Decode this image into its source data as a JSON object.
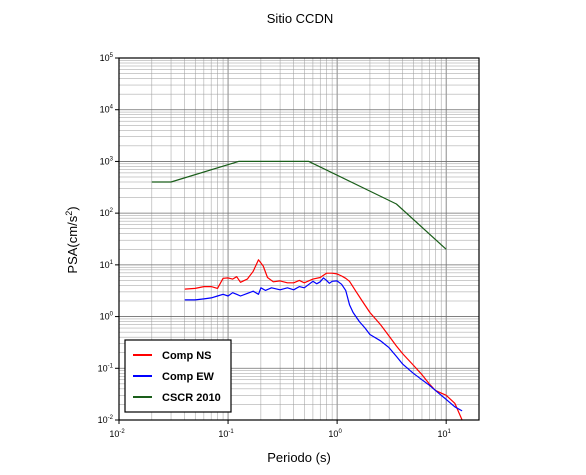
{
  "chart_data": {
    "type": "line",
    "title": "Sitio CCDN",
    "xlabel": "Periodo (s)",
    "ylabel": "PSA(cm/s2)",
    "xscale": "log",
    "yscale": "log",
    "xlim": [
      0.01,
      20
    ],
    "ylim": [
      0.01,
      100000
    ],
    "grid": true,
    "legend_position": "bottom-left",
    "xticks": [
      {
        "base": "10",
        "exp": "-2",
        "value": 0.01
      },
      {
        "base": "10",
        "exp": "-1",
        "value": 0.1
      },
      {
        "base": "10",
        "exp": "0",
        "value": 1
      },
      {
        "base": "10",
        "exp": "1",
        "value": 10
      }
    ],
    "yticks": [
      {
        "base": "10",
        "exp": "-2",
        "value": 0.01
      },
      {
        "base": "10",
        "exp": "-1",
        "value": 0.1
      },
      {
        "base": "10",
        "exp": "0",
        "value": 1
      },
      {
        "base": "10",
        "exp": "1",
        "value": 10
      },
      {
        "base": "10",
        "exp": "2",
        "value": 100
      },
      {
        "base": "10",
        "exp": "3",
        "value": 1000
      },
      {
        "base": "10",
        "exp": "4",
        "value": 10000
      },
      {
        "base": "10",
        "exp": "5",
        "value": 100000
      }
    ],
    "series": [
      {
        "name": "Comp NS",
        "color": "#ff0000",
        "points": [
          [
            0.04,
            3.4
          ],
          [
            0.05,
            3.5
          ],
          [
            0.06,
            3.8
          ],
          [
            0.07,
            3.8
          ],
          [
            0.08,
            3.5
          ],
          [
            0.09,
            5.5
          ],
          [
            0.1,
            5.6
          ],
          [
            0.11,
            5.3
          ],
          [
            0.12,
            5.9
          ],
          [
            0.13,
            4.6
          ],
          [
            0.15,
            5.3
          ],
          [
            0.17,
            7.5
          ],
          [
            0.19,
            12.5
          ],
          [
            0.21,
            9.5
          ],
          [
            0.23,
            5.7
          ],
          [
            0.26,
            4.7
          ],
          [
            0.3,
            4.9
          ],
          [
            0.35,
            4.5
          ],
          [
            0.4,
            4.5
          ],
          [
            0.45,
            5.0
          ],
          [
            0.5,
            4.5
          ],
          [
            0.6,
            5.3
          ],
          [
            0.7,
            5.7
          ],
          [
            0.8,
            6.9
          ],
          [
            0.9,
            6.9
          ],
          [
            1.0,
            6.7
          ],
          [
            1.1,
            6.1
          ],
          [
            1.2,
            5.5
          ],
          [
            1.3,
            4.8
          ],
          [
            1.5,
            3.0
          ],
          [
            1.7,
            2.0
          ],
          [
            2.0,
            1.2
          ],
          [
            2.5,
            0.7
          ],
          [
            3.0,
            0.42
          ],
          [
            3.5,
            0.27
          ],
          [
            4.0,
            0.19
          ],
          [
            5.0,
            0.115
          ],
          [
            6.0,
            0.075
          ],
          [
            7.0,
            0.05
          ],
          [
            8.0,
            0.037
          ],
          [
            10.0,
            0.03
          ],
          [
            12.0,
            0.021
          ],
          [
            14.0,
            0.01
          ]
        ]
      },
      {
        "name": "Comp EW",
        "color": "#0000ff",
        "points": [
          [
            0.04,
            2.1
          ],
          [
            0.05,
            2.1
          ],
          [
            0.06,
            2.2
          ],
          [
            0.07,
            2.3
          ],
          [
            0.08,
            2.5
          ],
          [
            0.09,
            2.7
          ],
          [
            0.1,
            2.5
          ],
          [
            0.11,
            2.9
          ],
          [
            0.12,
            2.7
          ],
          [
            0.13,
            2.5
          ],
          [
            0.15,
            2.8
          ],
          [
            0.17,
            3.1
          ],
          [
            0.19,
            2.7
          ],
          [
            0.2,
            3.6
          ],
          [
            0.22,
            3.2
          ],
          [
            0.25,
            3.6
          ],
          [
            0.3,
            3.3
          ],
          [
            0.35,
            3.6
          ],
          [
            0.4,
            3.3
          ],
          [
            0.45,
            3.8
          ],
          [
            0.5,
            3.6
          ],
          [
            0.6,
            4.8
          ],
          [
            0.65,
            4.3
          ],
          [
            0.7,
            4.7
          ],
          [
            0.75,
            5.6
          ],
          [
            0.8,
            5.0
          ],
          [
            0.85,
            4.4
          ],
          [
            0.9,
            4.8
          ],
          [
            1.0,
            4.9
          ],
          [
            1.1,
            4.2
          ],
          [
            1.2,
            3.2
          ],
          [
            1.3,
            1.7
          ],
          [
            1.4,
            1.2
          ],
          [
            1.6,
            0.8
          ],
          [
            1.8,
            0.6
          ],
          [
            2.0,
            0.45
          ],
          [
            2.5,
            0.34
          ],
          [
            3.0,
            0.25
          ],
          [
            3.5,
            0.17
          ],
          [
            4.0,
            0.12
          ],
          [
            5.0,
            0.08
          ],
          [
            6.0,
            0.06
          ],
          [
            7.0,
            0.047
          ],
          [
            8.0,
            0.037
          ],
          [
            9.0,
            0.03
          ],
          [
            10.0,
            0.025
          ],
          [
            12.0,
            0.018
          ],
          [
            14.0,
            0.015
          ]
        ]
      },
      {
        "name": "CSCR 2010",
        "color": "#1a5e1a",
        "points": [
          [
            0.02,
            400
          ],
          [
            0.03,
            400
          ],
          [
            0.125,
            1000
          ],
          [
            0.55,
            1000
          ],
          [
            3.5,
            150
          ],
          [
            10.0,
            20
          ]
        ]
      }
    ]
  }
}
